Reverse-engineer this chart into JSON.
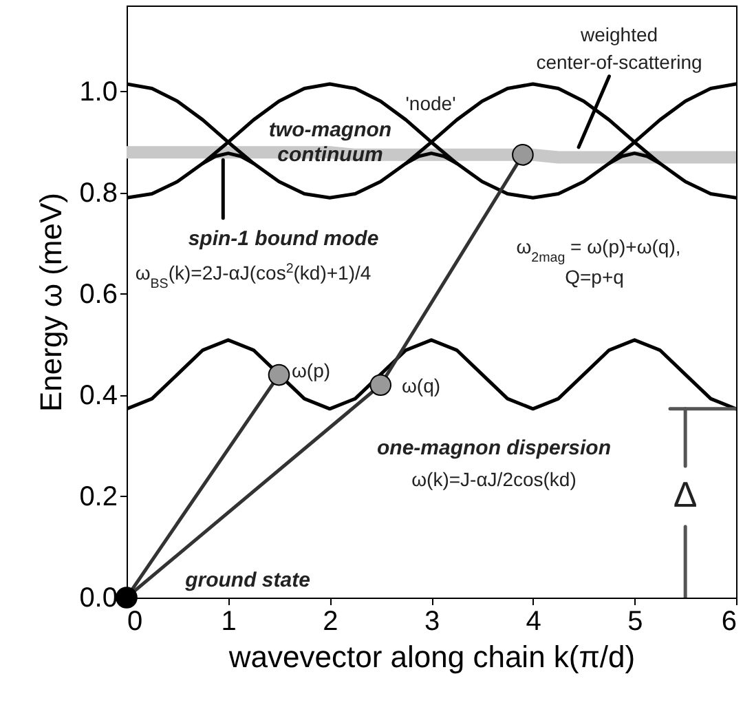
{
  "chart_data": {
    "type": "line",
    "xlabel": "wavevector along chain k(π/d)",
    "ylabel": "Energy ω (meV)",
    "x": [
      0,
      0.25,
      0.5,
      0.75,
      1,
      1.25,
      1.5,
      1.75,
      2,
      2.25,
      2.5,
      2.75,
      3,
      3.25,
      3.5,
      3.75,
      4,
      4.25,
      4.5,
      4.75,
      5,
      5.25,
      5.5,
      5.75,
      6
    ],
    "xlim": [
      0,
      6
    ],
    "xticks": [
      0,
      1,
      2,
      3,
      4,
      5,
      6
    ],
    "ylim": [
      0,
      1.17
    ],
    "yticks": [
      {
        "value": 0,
        "label": "0.0"
      },
      {
        "value": 0.2,
        "label": "0.2"
      },
      {
        "value": 0.4,
        "label": "0.4"
      },
      {
        "value": 0.6,
        "label": "0.6"
      },
      {
        "value": 0.8,
        "label": "0.8"
      },
      {
        "value": 1,
        "label": "1.0"
      }
    ],
    "series": [
      {
        "color": "#c8c8c8",
        "values": [
          0.88,
          0.88,
          0.88,
          0.88,
          0.88,
          0.88,
          0.88,
          0.88,
          0.88,
          0.875,
          0.875,
          0.875,
          0.875,
          0.875,
          0.875,
          0.875,
          0.875,
          0.87,
          0.87,
          0.87,
          0.87,
          0.87,
          0.87,
          0.87,
          0.87
        ]
      },
      {
        "color": "#000000",
        "values": [
          1.015,
          1.006,
          0.981,
          0.944,
          0.9,
          0.944,
          0.981,
          1.006,
          1.015,
          1.006,
          0.981,
          0.944,
          0.9,
          0.944,
          0.981,
          1.006,
          1.015,
          1.006,
          0.981,
          0.944,
          0.9,
          0.944,
          0.981,
          1.006,
          1.015
        ]
      },
      {
        "color": "#000000",
        "values": [
          0.79,
          0.798,
          0.822,
          0.858,
          0.9,
          0.858,
          0.822,
          0.798,
          0.79,
          0.798,
          0.822,
          0.858,
          0.9,
          0.858,
          0.822,
          0.798,
          0.79,
          0.798,
          0.822,
          0.858,
          0.9,
          0.858,
          0.822,
          0.798,
          0.79
        ]
      },
      {
        "color": "#000000",
        "x": [
          0.75,
          0.875,
          1,
          1.125,
          1.25
        ],
        "values": [
          0.858,
          0.872,
          0.878,
          0.872,
          0.858
        ]
      },
      {
        "color": "#000000",
        "x": [
          2.75,
          2.875,
          3,
          3.125,
          3.25
        ],
        "values": [
          0.858,
          0.872,
          0.878,
          0.872,
          0.858
        ]
      },
      {
        "color": "#000000",
        "x": [
          4.75,
          4.875,
          5,
          5.125,
          5.25
        ],
        "values": [
          0.858,
          0.872,
          0.878,
          0.872,
          0.858
        ]
      },
      {
        "color": "#000000",
        "values": [
          0.373,
          0.393,
          0.441,
          0.489,
          0.509,
          0.489,
          0.441,
          0.393,
          0.373,
          0.393,
          0.441,
          0.489,
          0.509,
          0.489,
          0.441,
          0.393,
          0.373,
          0.393,
          0.441,
          0.489,
          0.509,
          0.489,
          0.441,
          0.393,
          0.373
        ]
      },
      {
        "color": "#333333",
        "x": [
          0,
          1.5
        ],
        "values": [
          0,
          0.44
        ]
      },
      {
        "color": "#333333",
        "x": [
          0,
          2.5
        ],
        "values": [
          0,
          0.42
        ]
      },
      {
        "color": "#333333",
        "x": [
          2.5,
          3.9
        ],
        "values": [
          0.42,
          0.875
        ]
      },
      {
        "color": "#000000",
        "x": [
          0.95,
          0.95
        ],
        "values": [
          0.75,
          0.865
        ]
      },
      {
        "color": "#000000",
        "x": [
          4.75,
          4.45
        ],
        "values": [
          1.03,
          0.89
        ]
      },
      {
        "color": "#555555",
        "x": [
          5.35,
          6
        ],
        "values": [
          0.373,
          0.373
        ]
      },
      {
        "color": "#555555",
        "x": [
          5.5,
          5.5
        ],
        "values": [
          0,
          0.14
        ]
      },
      {
        "color": "#555555",
        "x": [
          5.5,
          5.5
        ],
        "values": [
          0.26,
          0.373
        ]
      },
      {
        "type": "scatter",
        "marker": "circle",
        "color": "#999999",
        "x": [
          1.5,
          2.5,
          3.9
        ],
        "values": [
          0.44,
          0.42,
          0.875
        ]
      },
      {
        "type": "scatter",
        "marker": "circle",
        "color": "#000000",
        "x": [
          0
        ],
        "values": [
          0
        ]
      }
    ],
    "annotations": [
      "two-magnon",
      "continuum",
      "spin-1 bound mode",
      "ω$_{BS}$(k)=2J-αJ(cos$^{2}$(kd)+1)/4",
      "'node'",
      "weighted",
      "center-of-scattering",
      "ω$_{2mag}$ = ω(p)+ω(q),",
      "Q=p+q",
      "ω(p)",
      "ω(q)",
      "one-magnon dispersion",
      "ω(k)=J-αJ/2cos(kd)",
      "ground state",
      "Δ"
    ]
  }
}
